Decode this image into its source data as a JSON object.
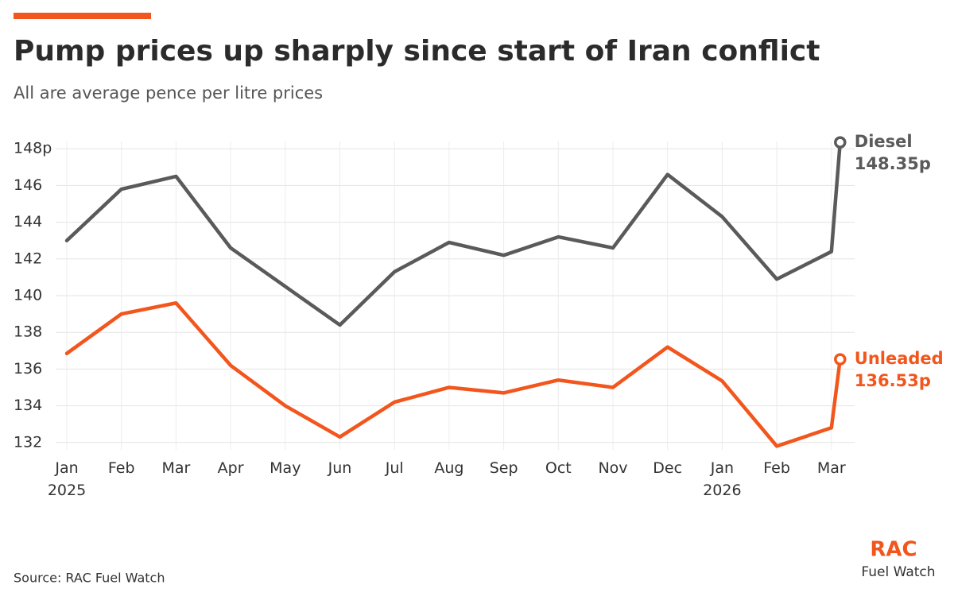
{
  "chart_data": {
    "type": "line",
    "title": "Pump prices up sharply since start of Iran conflict",
    "subtitle": "All are average pence per litre prices",
    "source": "Source: RAC Fuel Watch",
    "logo": {
      "brand": "RAC",
      "product": "Fuel Watch"
    },
    "categories": [
      "Jan 2025",
      "Feb",
      "Mar",
      "Apr",
      "May",
      "Jun",
      "Jul",
      "Aug",
      "Sep",
      "Oct",
      "Nov",
      "Dec",
      "Jan 2026",
      "Feb",
      "Mar",
      null
    ],
    "series": [
      {
        "name": "Diesel",
        "color": "#5a5a5a",
        "values": [
          143.0,
          145.8,
          146.5,
          142.6,
          140.5,
          138.4,
          141.3,
          142.9,
          142.2,
          143.2,
          142.6,
          146.6,
          144.3,
          140.9,
          142.4,
          148.35
        ],
        "value_labels": [
          null,
          null,
          null,
          null,
          null,
          null,
          null,
          null,
          null,
          null,
          null,
          null,
          null,
          null,
          null,
          "148.35p"
        ]
      },
      {
        "name": "Unleaded",
        "color": "#f2561d",
        "values": [
          136.85,
          139.0,
          139.6,
          136.2,
          134.0,
          132.3,
          134.2,
          135.0,
          134.7,
          135.4,
          135.0,
          137.2,
          135.35,
          131.8,
          132.8,
          136.53
        ],
        "value_labels": [
          null,
          null,
          null,
          null,
          null,
          null,
          null,
          null,
          null,
          null,
          null,
          null,
          null,
          null,
          null,
          "136.53p"
        ]
      }
    ],
    "ylim": [
      131.6,
      148.4
    ],
    "yticks": [
      132,
      134,
      136,
      138,
      140,
      142,
      144,
      146,
      {
        "value": 148,
        "label": "148p"
      }
    ],
    "grid": true
  }
}
